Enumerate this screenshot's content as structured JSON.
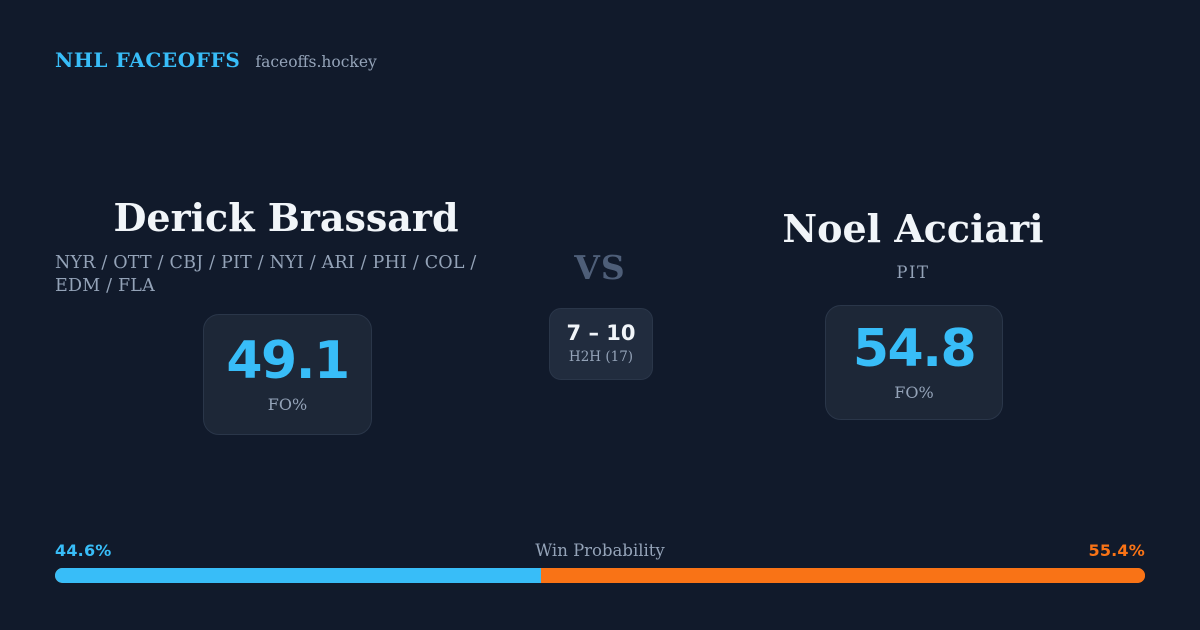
{
  "colors": {
    "background": "#111a2b",
    "card": "#1d2737",
    "card_light": "#212c3e",
    "card_border": "#2a3649",
    "accent_blue": "#38bdf8",
    "accent_orange": "#f97316",
    "text_primary": "#f1f5f9",
    "text_muted": "#94a3b8",
    "vs": "#4e5e78"
  },
  "header": {
    "brand": "NHL FACEOFFS",
    "site": "faceoffs.hockey"
  },
  "players": {
    "left": {
      "name": "Derick Brassard",
      "teams": "NYR / OTT / CBJ / PIT / NYI / ARI / PHI / COL / EDM / FLA",
      "fo_value": "49.1",
      "fo_label": "FO%"
    },
    "right": {
      "name": "Noel Acciari",
      "teams": "PIT",
      "fo_value": "54.8",
      "fo_label": "FO%"
    }
  },
  "matchup": {
    "vs_label": "VS",
    "h2h_score": "7 – 10",
    "h2h_label": "H2H (17)"
  },
  "win_probability": {
    "title": "Win Probability",
    "left_label": "44.6%",
    "right_label": "55.4%",
    "left_value": 44.6,
    "right_value": 55.4
  }
}
